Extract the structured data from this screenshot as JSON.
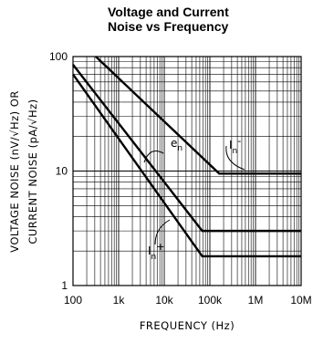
{
  "title": [
    "Voltage and Current",
    "Noise vs Frequency"
  ],
  "chart_data": {
    "type": "line",
    "title": "Voltage and Current Noise vs Frequency",
    "xlabel": "FREQUENCY (Hz)",
    "ylabel_main": "VOLTAGE NOISE (nV/√Hz) OR",
    "ylabel_sub": "CURRENT NOISE (pA/√Hz)",
    "xscale": "log",
    "yscale": "log",
    "xlim": [
      100,
      10000000
    ],
    "ylim": [
      1,
      100
    ],
    "x_ticks": [
      100,
      1000,
      10000,
      100000,
      1000000,
      10000000
    ],
    "x_tick_labels": [
      "100",
      "1k",
      "10k",
      "100k",
      "1M",
      "10M"
    ],
    "y_ticks": [
      1,
      10,
      100
    ],
    "y_tick_labels": [
      "1",
      "10",
      "100"
    ],
    "grid": true,
    "series": [
      {
        "name": "In-",
        "points": [
          [
            316,
            100
          ],
          [
            160000,
            9.5
          ],
          [
            10000000,
            9.5
          ]
        ]
      },
      {
        "name": "en",
        "points": [
          [
            100,
            85
          ],
          [
            68000,
            3.0
          ],
          [
            10000000,
            3.0
          ]
        ]
      },
      {
        "name": "In+",
        "points": [
          [
            100,
            70
          ],
          [
            68000,
            1.8
          ],
          [
            10000000,
            1.8
          ]
        ]
      }
    ],
    "annotations": [
      {
        "base": "e",
        "sub": "n",
        "target": "en"
      },
      {
        "base": "I",
        "sub": "n",
        "sup": "-",
        "target": "In-"
      },
      {
        "base": "I",
        "sub": "n",
        "sup": "+",
        "target": "In+"
      }
    ]
  }
}
